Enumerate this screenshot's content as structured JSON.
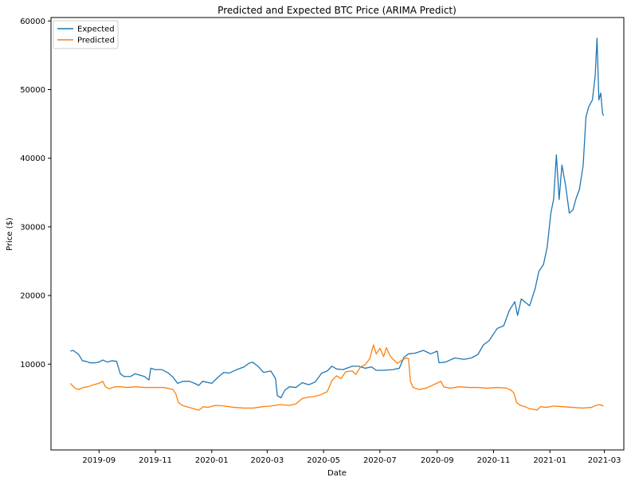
{
  "chart_data": {
    "type": "line",
    "title": "Predicted and Expected BTC Price (ARIMA Predict)",
    "xlabel": "Date",
    "ylabel": "Price ($)",
    "xlim": [
      "2019-07-11",
      "2021-03-22"
    ],
    "ylim": [
      -2500,
      60500
    ],
    "x_ticks": [
      "2019-09",
      "2019-11",
      "2020-01",
      "2020-03",
      "2020-05",
      "2020-07",
      "2020-09",
      "2020-11",
      "2021-01",
      "2021-03"
    ],
    "y_ticks": [
      10000,
      20000,
      30000,
      40000,
      50000,
      60000
    ],
    "grid": false,
    "legend_position": "top-left",
    "series": [
      {
        "name": "Expected",
        "color": "#1f77b4",
        "points": [
          [
            "2019-08-01",
            11900
          ],
          [
            "2019-08-04",
            12000
          ],
          [
            "2019-08-07",
            11700
          ],
          [
            "2019-08-10",
            11400
          ],
          [
            "2019-08-14",
            10500
          ],
          [
            "2019-08-18",
            10400
          ],
          [
            "2019-08-22",
            10200
          ],
          [
            "2019-08-28",
            10200
          ],
          [
            "2019-09-01",
            10300
          ],
          [
            "2019-09-05",
            10600
          ],
          [
            "2019-09-10",
            10300
          ],
          [
            "2019-09-15",
            10500
          ],
          [
            "2019-09-20",
            10400
          ],
          [
            "2019-09-24",
            8600
          ],
          [
            "2019-09-28",
            8200
          ],
          [
            "2019-10-05",
            8200
          ],
          [
            "2019-10-10",
            8600
          ],
          [
            "2019-10-15",
            8400
          ],
          [
            "2019-10-20",
            8200
          ],
          [
            "2019-10-25",
            7700
          ],
          [
            "2019-10-27",
            9400
          ],
          [
            "2019-11-01",
            9200
          ],
          [
            "2019-11-08",
            9200
          ],
          [
            "2019-11-15",
            8700
          ],
          [
            "2019-11-20",
            8100
          ],
          [
            "2019-11-25",
            7200
          ],
          [
            "2019-12-01",
            7500
          ],
          [
            "2019-12-08",
            7500
          ],
          [
            "2019-12-15",
            7100
          ],
          [
            "2019-12-18",
            6900
          ],
          [
            "2019-12-22",
            7500
          ],
          [
            "2020-01-01",
            7200
          ],
          [
            "2020-01-07",
            8000
          ],
          [
            "2020-01-14",
            8800
          ],
          [
            "2020-01-20",
            8700
          ],
          [
            "2020-01-28",
            9200
          ],
          [
            "2020-02-05",
            9600
          ],
          [
            "2020-02-10",
            10100
          ],
          [
            "2020-02-14",
            10300
          ],
          [
            "2020-02-20",
            9700
          ],
          [
            "2020-02-26",
            8800
          ],
          [
            "2020-03-05",
            9000
          ],
          [
            "2020-03-10",
            7900
          ],
          [
            "2020-03-12",
            5400
          ],
          [
            "2020-03-16",
            5100
          ],
          [
            "2020-03-20",
            6200
          ],
          [
            "2020-03-25",
            6700
          ],
          [
            "2020-04-01",
            6600
          ],
          [
            "2020-04-08",
            7300
          ],
          [
            "2020-04-15",
            7000
          ],
          [
            "2020-04-22",
            7400
          ],
          [
            "2020-04-29",
            8700
          ],
          [
            "2020-05-05",
            9000
          ],
          [
            "2020-05-10",
            9700
          ],
          [
            "2020-05-15",
            9300
          ],
          [
            "2020-05-22",
            9200
          ],
          [
            "2020-06-01",
            9700
          ],
          [
            "2020-06-08",
            9700
          ],
          [
            "2020-06-15",
            9400
          ],
          [
            "2020-06-22",
            9600
          ],
          [
            "2020-06-27",
            9100
          ],
          [
            "2020-07-05",
            9100
          ],
          [
            "2020-07-15",
            9200
          ],
          [
            "2020-07-22",
            9400
          ],
          [
            "2020-07-27",
            11000
          ],
          [
            "2020-08-01",
            11500
          ],
          [
            "2020-08-08",
            11600
          ],
          [
            "2020-08-17",
            12000
          ],
          [
            "2020-08-25",
            11500
          ],
          [
            "2020-09-01",
            11900
          ],
          [
            "2020-09-03",
            10200
          ],
          [
            "2020-09-10",
            10300
          ],
          [
            "2020-09-20",
            10900
          ],
          [
            "2020-09-30",
            10700
          ],
          [
            "2020-10-08",
            10900
          ],
          [
            "2020-10-15",
            11400
          ],
          [
            "2020-10-21",
            12800
          ],
          [
            "2020-10-27",
            13400
          ],
          [
            "2020-11-05",
            15200
          ],
          [
            "2020-11-12",
            15600
          ],
          [
            "2020-11-18",
            17800
          ],
          [
            "2020-11-24",
            19100
          ],
          [
            "2020-11-27",
            17100
          ],
          [
            "2020-12-01",
            19500
          ],
          [
            "2020-12-10",
            18500
          ],
          [
            "2020-12-16",
            21000
          ],
          [
            "2020-12-20",
            23500
          ],
          [
            "2020-12-25",
            24500
          ],
          [
            "2020-12-29",
            27000
          ],
          [
            "2021-01-02",
            32000
          ],
          [
            "2021-01-05",
            34000
          ],
          [
            "2021-01-08",
            40500
          ],
          [
            "2021-01-11",
            34000
          ],
          [
            "2021-01-14",
            39000
          ],
          [
            "2021-01-18",
            36000
          ],
          [
            "2021-01-22",
            32000
          ],
          [
            "2021-01-26",
            32500
          ],
          [
            "2021-01-29",
            34000
          ],
          [
            "2021-02-02",
            35500
          ],
          [
            "2021-02-06",
            39000
          ],
          [
            "2021-02-09",
            46000
          ],
          [
            "2021-02-12",
            47500
          ],
          [
            "2021-02-16",
            48500
          ],
          [
            "2021-02-19",
            52000
          ],
          [
            "2021-02-21",
            57500
          ],
          [
            "2021-02-23",
            48500
          ],
          [
            "2021-02-25",
            49500
          ],
          [
            "2021-02-27",
            46500
          ],
          [
            "2021-02-28",
            46200
          ]
        ]
      },
      {
        "name": "Predicted",
        "color": "#ff7f0e",
        "points": [
          [
            "2019-08-01",
            7200
          ],
          [
            "2019-08-03",
            6900
          ],
          [
            "2019-08-06",
            6500
          ],
          [
            "2019-08-10",
            6300
          ],
          [
            "2019-08-15",
            6600
          ],
          [
            "2019-08-20",
            6700
          ],
          [
            "2019-08-26",
            7000
          ],
          [
            "2019-09-01",
            7200
          ],
          [
            "2019-09-05",
            7500
          ],
          [
            "2019-09-08",
            6700
          ],
          [
            "2019-09-12",
            6400
          ],
          [
            "2019-09-18",
            6700
          ],
          [
            "2019-09-25",
            6700
          ],
          [
            "2019-10-01",
            6600
          ],
          [
            "2019-10-10",
            6700
          ],
          [
            "2019-10-20",
            6600
          ],
          [
            "2019-11-01",
            6600
          ],
          [
            "2019-11-10",
            6600
          ],
          [
            "2019-11-20",
            6300
          ],
          [
            "2019-11-23",
            5700
          ],
          [
            "2019-11-26",
            4400
          ],
          [
            "2019-11-30",
            4000
          ],
          [
            "2019-12-05",
            3800
          ],
          [
            "2019-12-10",
            3600
          ],
          [
            "2019-12-15",
            3400
          ],
          [
            "2019-12-18",
            3300
          ],
          [
            "2019-12-23",
            3800
          ],
          [
            "2019-12-28",
            3700
          ],
          [
            "2020-01-05",
            4000
          ],
          [
            "2020-01-15",
            3900
          ],
          [
            "2020-01-25",
            3700
          ],
          [
            "2020-02-05",
            3600
          ],
          [
            "2020-02-15",
            3600
          ],
          [
            "2020-02-25",
            3800
          ],
          [
            "2020-03-05",
            3900
          ],
          [
            "2020-03-15",
            4100
          ],
          [
            "2020-03-25",
            4000
          ],
          [
            "2020-04-01",
            4200
          ],
          [
            "2020-04-08",
            5000
          ],
          [
            "2020-04-15",
            5200
          ],
          [
            "2020-04-22",
            5300
          ],
          [
            "2020-04-29",
            5600
          ],
          [
            "2020-05-05",
            6000
          ],
          [
            "2020-05-10",
            7600
          ],
          [
            "2020-05-15",
            8300
          ],
          [
            "2020-05-20",
            7900
          ],
          [
            "2020-05-25",
            8900
          ],
          [
            "2020-06-01",
            9000
          ],
          [
            "2020-06-05",
            8500
          ],
          [
            "2020-06-10",
            9600
          ],
          [
            "2020-06-15",
            9900
          ],
          [
            "2020-06-20",
            10800
          ],
          [
            "2020-06-24",
            12800
          ],
          [
            "2020-06-27",
            11500
          ],
          [
            "2020-07-01",
            12300
          ],
          [
            "2020-07-05",
            11100
          ],
          [
            "2020-07-08",
            12400
          ],
          [
            "2020-07-12",
            11200
          ],
          [
            "2020-07-16",
            10600
          ],
          [
            "2020-07-20",
            10100
          ],
          [
            "2020-07-25",
            10600
          ],
          [
            "2020-07-30",
            10900
          ],
          [
            "2020-08-01",
            10800
          ],
          [
            "2020-08-03",
            7500
          ],
          [
            "2020-08-06",
            6600
          ],
          [
            "2020-08-12",
            6300
          ],
          [
            "2020-08-20",
            6500
          ],
          [
            "2020-08-28",
            7000
          ],
          [
            "2020-09-05",
            7500
          ],
          [
            "2020-09-08",
            6700
          ],
          [
            "2020-09-15",
            6500
          ],
          [
            "2020-09-25",
            6700
          ],
          [
            "2020-10-05",
            6600
          ],
          [
            "2020-10-15",
            6600
          ],
          [
            "2020-10-25",
            6500
          ],
          [
            "2020-11-05",
            6600
          ],
          [
            "2020-11-15",
            6500
          ],
          [
            "2020-11-20",
            6200
          ],
          [
            "2020-11-23",
            5800
          ],
          [
            "2020-11-26",
            4400
          ],
          [
            "2020-11-30",
            4000
          ],
          [
            "2020-12-05",
            3800
          ],
          [
            "2020-12-10",
            3500
          ],
          [
            "2020-12-15",
            3400
          ],
          [
            "2020-12-18",
            3300
          ],
          [
            "2020-12-22",
            3800
          ],
          [
            "2020-12-28",
            3700
          ],
          [
            "2021-01-05",
            3900
          ],
          [
            "2021-01-15",
            3800
          ],
          [
            "2021-01-25",
            3700
          ],
          [
            "2021-02-05",
            3600
          ],
          [
            "2021-02-15",
            3700
          ],
          [
            "2021-02-20",
            4000
          ],
          [
            "2021-02-24",
            4100
          ],
          [
            "2021-02-28",
            3900
          ]
        ]
      }
    ]
  }
}
